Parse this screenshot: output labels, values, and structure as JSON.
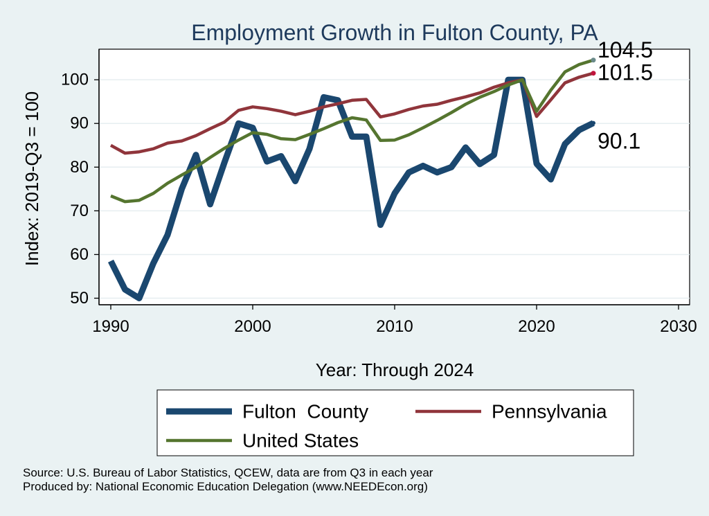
{
  "chart_data": {
    "type": "line",
    "title": "Employment Growth in Fulton County, PA",
    "xlabel": "Year: Through 2024",
    "ylabel": "Index: 2019-Q3 = 100",
    "xlim": [
      1990,
      2030
    ],
    "ylim": [
      48.5,
      107
    ],
    "xticks": [
      1990,
      2000,
      2010,
      2020,
      2030
    ],
    "yticks": [
      50,
      60,
      70,
      80,
      90,
      100
    ],
    "grid": true,
    "legend_position": "bottom",
    "x": [
      1990,
      1991,
      1992,
      1993,
      1994,
      1995,
      1996,
      1997,
      1998,
      1999,
      2000,
      2001,
      2002,
      2003,
      2004,
      2005,
      2006,
      2007,
      2008,
      2009,
      2010,
      2011,
      2012,
      2013,
      2014,
      2015,
      2016,
      2017,
      2018,
      2019,
      2020,
      2021,
      2022,
      2023,
      2024
    ],
    "series": [
      {
        "name": "Fulton  County",
        "color": "#1a476f",
        "end_label": "90.1",
        "values": [
          58.5,
          52.0,
          50.0,
          58.0,
          64.5,
          75.0,
          82.8,
          71.5,
          81.0,
          90.0,
          89.0,
          81.3,
          82.5,
          76.8,
          84.2,
          96.0,
          95.3,
          87.0,
          87.0,
          66.8,
          74.0,
          78.8,
          80.3,
          78.8,
          80.0,
          84.5,
          80.7,
          82.8,
          100.0,
          100.0,
          80.8,
          77.2,
          85.3,
          88.5,
          90.1
        ]
      },
      {
        "name": "Pennsylvania",
        "color": "#90353b",
        "end_label": "101.5",
        "values": [
          85.0,
          83.2,
          83.5,
          84.2,
          85.5,
          86.0,
          87.2,
          88.8,
          90.3,
          93.0,
          93.8,
          93.4,
          92.8,
          92.0,
          92.8,
          93.8,
          94.5,
          95.3,
          95.5,
          91.5,
          92.2,
          93.2,
          94.0,
          94.4,
          95.3,
          96.1,
          97.0,
          98.3,
          99.3,
          100.0,
          91.6,
          95.4,
          99.3,
          100.6,
          101.5
        ]
      },
      {
        "name": "United States",
        "color": "#55752f",
        "end_label": "104.5",
        "values": [
          73.4,
          72.1,
          72.4,
          74.0,
          76.3,
          78.2,
          80.0,
          82.2,
          84.3,
          86.2,
          87.9,
          87.5,
          86.5,
          86.3,
          87.5,
          88.8,
          90.2,
          91.3,
          90.8,
          86.1,
          86.2,
          87.4,
          89.0,
          90.7,
          92.5,
          94.4,
          96.0,
          97.3,
          98.8,
          100.0,
          92.8,
          97.6,
          101.8,
          103.5,
          104.5
        ]
      }
    ]
  },
  "source_text": "Source: U.S. Bureau of Labor Statistics, QCEW, data are from Q3 in each year",
  "produced_by_text": "Produced by: National Economic Education Delegation (www.NEEDEcon.org)"
}
